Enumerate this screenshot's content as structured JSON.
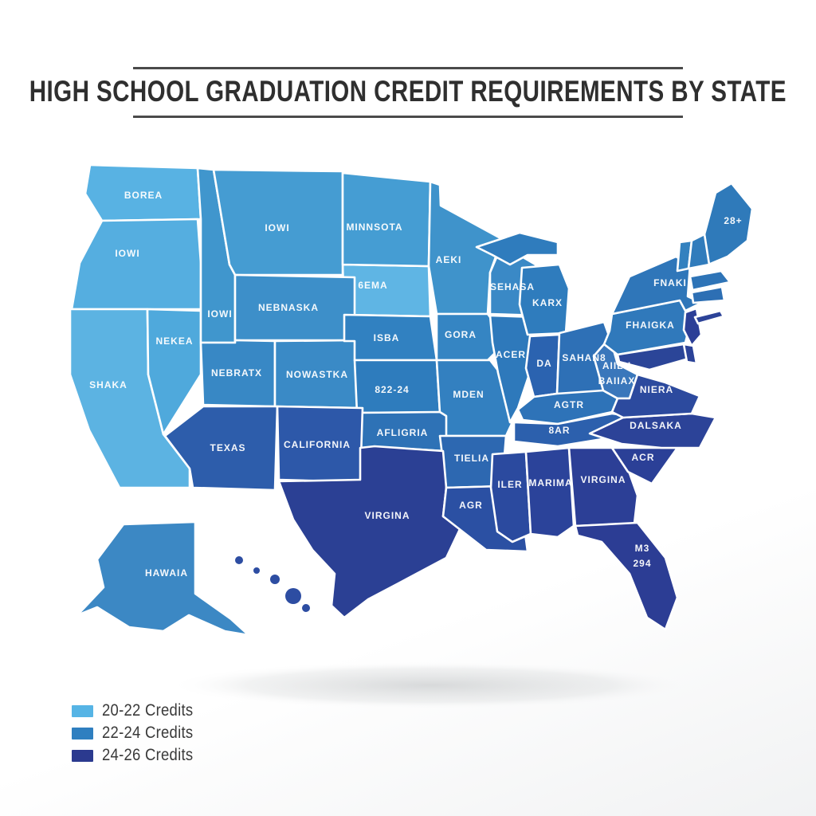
{
  "title": "HIGH SCHOOL GRADUATION CREDIT REQUIREMENTS BY STATE",
  "legend": {
    "items": [
      {
        "label": "20-22 Credits",
        "color": "#56b4e5",
        "range": "20-22"
      },
      {
        "label": "22-24 Credits",
        "color": "#2f7fc0",
        "range": "22-24"
      },
      {
        "label": "24-26 Credits",
        "color": "#2b3a8f",
        "range": "24-26"
      }
    ]
  },
  "map": {
    "states": [
      {
        "id": "WA",
        "label": "BOREA",
        "credits": "20-22"
      },
      {
        "id": "OR",
        "label": "IOWI",
        "credits": "20-22"
      },
      {
        "id": "CA",
        "label": "SHAKA",
        "credits": "20-22"
      },
      {
        "id": "NV",
        "label": "NEKEA",
        "credits": "20-22"
      },
      {
        "id": "SD",
        "label": "6EMA",
        "credits": "20-22"
      },
      {
        "id": "ID",
        "label": "IOWI",
        "credits": "22-24"
      },
      {
        "id": "MT",
        "label": "IOWI",
        "credits": "22-24"
      },
      {
        "id": "WY",
        "label": "NEBNASKA",
        "credits": "22-24"
      },
      {
        "id": "UT",
        "label": "NEBRATX",
        "credits": "22-24"
      },
      {
        "id": "CO",
        "label": "NOWASTKA",
        "credits": "22-24"
      },
      {
        "id": "ND",
        "label": "MINNSOTA",
        "credits": "22-24"
      },
      {
        "id": "MN",
        "label": "AEKI",
        "credits": "22-24"
      },
      {
        "id": "NE",
        "label": "ISBA",
        "credits": "22-24"
      },
      {
        "id": "IA",
        "label": "GORA",
        "credits": "22-24"
      },
      {
        "id": "KS",
        "label": "822-24",
        "credits": "22-24"
      },
      {
        "id": "MO",
        "label": "MDEN",
        "credits": "22-24"
      },
      {
        "id": "OK",
        "label": "AFLIGRIA",
        "credits": "22-24"
      },
      {
        "id": "AR",
        "label": "TIELIA",
        "credits": "22-24"
      },
      {
        "id": "WI",
        "label": "SEHASA",
        "credits": "22-24"
      },
      {
        "id": "IL",
        "label": "ACER",
        "credits": "22-24"
      },
      {
        "id": "MI",
        "label": "KARX",
        "credits": "22-24"
      },
      {
        "id": "IN",
        "label": "DA",
        "credits": "22-24"
      },
      {
        "id": "OH",
        "label": "SAHAN8",
        "credits": "22-24"
      },
      {
        "id": "KY",
        "label": "AGTR",
        "credits": "22-24"
      },
      {
        "id": "TN",
        "label": "8AR",
        "credits": "22-24"
      },
      {
        "id": "WV",
        "label": [
          "AIILU",
          "BAIIAX"
        ],
        "credits": "22-24"
      },
      {
        "id": "PA",
        "label": "FHAIGKA",
        "credits": "22-24"
      },
      {
        "id": "NY",
        "label": "FNAKI",
        "credits": "22-24"
      },
      {
        "id": "ME",
        "label": "28+",
        "credits": "22-24"
      },
      {
        "id": "VT",
        "label": "",
        "credits": "22-24"
      },
      {
        "id": "NH",
        "label": "",
        "credits": "22-24"
      },
      {
        "id": "MA",
        "label": "",
        "credits": "22-24"
      },
      {
        "id": "CT",
        "label": "",
        "credits": "22-24"
      },
      {
        "id": "AK",
        "label": "HAWAIA",
        "credits": "22-24"
      },
      {
        "id": "AZ",
        "label": "TEXAS",
        "credits": "24-26"
      },
      {
        "id": "NM",
        "label": "CALIFORNIA",
        "credits": "24-26"
      },
      {
        "id": "TX",
        "label": "VIRGINA",
        "credits": "24-26"
      },
      {
        "id": "LA",
        "label": "AGR",
        "credits": "24-26"
      },
      {
        "id": "MS",
        "label": "ILER",
        "credits": "24-26"
      },
      {
        "id": "AL",
        "label": "MARIMA",
        "credits": "24-26"
      },
      {
        "id": "GA",
        "label": "VIRGINA",
        "credits": "24-26"
      },
      {
        "id": "FL",
        "label": [
          "M3",
          "294"
        ],
        "credits": "24-26"
      },
      {
        "id": "SC",
        "label": "ACR",
        "credits": "24-26"
      },
      {
        "id": "NC",
        "label": "DALSAKA",
        "credits": "24-26"
      },
      {
        "id": "VA",
        "label": "NIERA",
        "credits": "24-26"
      },
      {
        "id": "NJ",
        "label": "",
        "credits": "24-26"
      },
      {
        "id": "MD",
        "label": "",
        "credits": "24-26"
      },
      {
        "id": "DE",
        "label": "",
        "credits": "24-26"
      },
      {
        "id": "LI",
        "label": "",
        "credits": "24-26"
      },
      {
        "id": "HI",
        "label": "",
        "credits": "24-26"
      }
    ]
  }
}
